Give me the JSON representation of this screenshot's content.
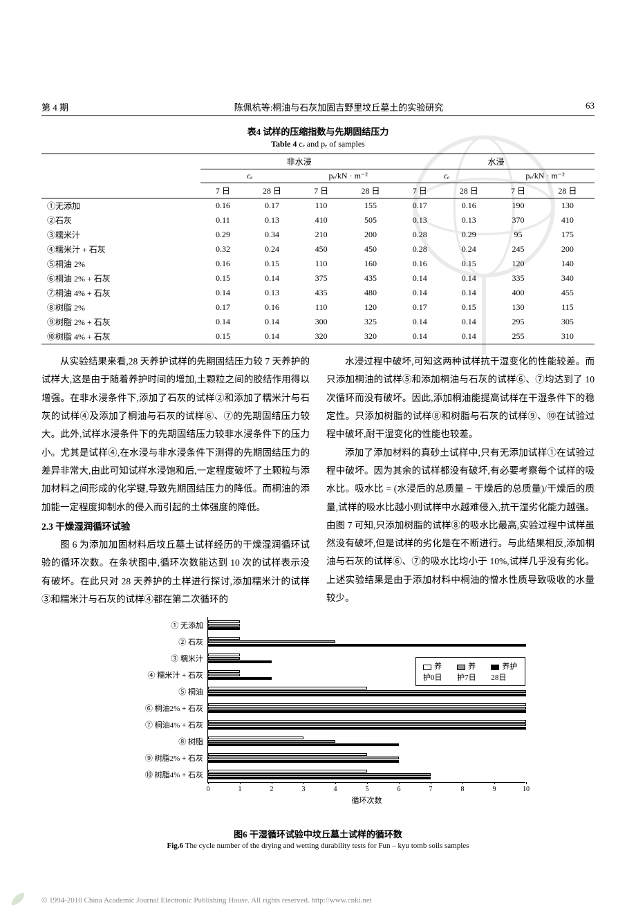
{
  "page": {
    "issue": "第 4 期",
    "running_title": "陈佩杭等:桐油与石灰加固吉野里坟丘墓土的实验研究",
    "page_number": "63"
  },
  "table4": {
    "caption_cn": "表4  试样的压缩指数与先期固结压力",
    "caption_en_prefix": "Table 4",
    "caption_en_body": "cₑ and pₑ of samples",
    "group_labels": {
      "unsat": "非水浸",
      "sat": "水浸"
    },
    "subheads": {
      "cc": "cₑ",
      "pc": "pₑ/kN · m⁻²",
      "d7": "7 日",
      "d28": "28 日"
    },
    "rows": [
      {
        "label": "①无添加",
        "ucc7": "0.16",
        "ucc28": "0.17",
        "upc7": "110",
        "upc28": "155",
        "scc7": "0.17",
        "scc28": "0.16",
        "spc7": "190",
        "spc28": "130"
      },
      {
        "label": "②石灰",
        "ucc7": "0.11",
        "ucc28": "0.13",
        "upc7": "410",
        "upc28": "505",
        "scc7": "0.13",
        "scc28": "0.13",
        "spc7": "370",
        "spc28": "410"
      },
      {
        "label": "③糯米汁",
        "ucc7": "0.29",
        "ucc28": "0.34",
        "upc7": "210",
        "upc28": "200",
        "scc7": "0.28",
        "scc28": "0.29",
        "spc7": "95",
        "spc28": "175"
      },
      {
        "label": "④糯米汁 + 石灰",
        "ucc7": "0.32",
        "ucc28": "0.24",
        "upc7": "450",
        "upc28": "450",
        "scc7": "0.28",
        "scc28": "0.24",
        "spc7": "245",
        "spc28": "200"
      },
      {
        "label": "⑤桐油 2%",
        "ucc7": "0.16",
        "ucc28": "0.15",
        "upc7": "110",
        "upc28": "160",
        "scc7": "0.16",
        "scc28": "0.15",
        "spc7": "120",
        "spc28": "140"
      },
      {
        "label": "⑥桐油 2% + 石灰",
        "ucc7": "0.15",
        "ucc28": "0.14",
        "upc7": "375",
        "upc28": "435",
        "scc7": "0.14",
        "scc28": "0.14",
        "spc7": "335",
        "spc28": "340"
      },
      {
        "label": "⑦桐油 4% + 石灰",
        "ucc7": "0.14",
        "ucc28": "0.13",
        "upc7": "435",
        "upc28": "480",
        "scc7": "0.14",
        "scc28": "0.14",
        "spc7": "400",
        "spc28": "455"
      },
      {
        "label": "⑧树脂 2%",
        "ucc7": "0.17",
        "ucc28": "0.16",
        "upc7": "110",
        "upc28": "120",
        "scc7": "0.17",
        "scc28": "0.15",
        "spc7": "130",
        "spc28": "115"
      },
      {
        "label": "⑨树脂 2% + 石灰",
        "ucc7": "0.14",
        "ucc28": "0.14",
        "upc7": "300",
        "upc28": "325",
        "scc7": "0.14",
        "scc28": "0.14",
        "spc7": "295",
        "spc28": "305"
      },
      {
        "label": "⑩树脂 4% + 石灰",
        "ucc7": "0.15",
        "ucc28": "0.14",
        "upc7": "320",
        "upc28": "320",
        "scc7": "0.14",
        "scc28": "0.14",
        "spc7": "255",
        "spc28": "310"
      }
    ]
  },
  "body": {
    "left": {
      "p1": "从实验结果来看,28 天养护试样的先期固结压力较 7 天养护的试样大,这是由于随着养护时间的增加,土颗粒之间的胶结作用得以增强。在非水浸条件下,添加了石灰的试样②和添加了糯米汁与石灰的试样④及添加了桐油与石灰的试样⑥、⑦的先期固结压力较大。此外,试样水浸条件下的先期固结压力较非水浸条件下的压力小。尤其是试样④,在水浸与非水浸条件下测得的先期固结压力的差异非常大,由此可知试样水浸饱和后,一定程度破坏了土颗粒与添加材料之间形成的化学键,导致先期固结压力的降低。而桐油的添加能一定程度抑制水的侵入而引起的土体强度的降低。",
      "h3": "2.3  干燥湿润循环试验",
      "p2": "图 6 为添加加固材料后坟丘墓土试样经历的干燥湿润循环试验的循环次数。在条状图中,循环次数能达到 10 次的试样表示没有破坏。在此只对 28 天养护的土样进行探讨,添加糯米汁的试样③和糯米汁与石灰的试样④都在第二次循环的"
    },
    "right": {
      "p1": "水浸过程中破坏,可知这两种试样抗干湿变化的性能较差。而只添加桐油的试样⑤和添加桐油与石灰的试样⑥、⑦均达到了 10 次循环而没有破坏。因此,添加桐油能提高试样在干湿条件下的稳定性。只添加树脂的试样⑧和树脂与石灰的试样⑨、⑩在试验过程中破坏,耐干湿变化的性能也较差。",
      "p2": "添加了添加材料的真砂土试样中,只有无添加试样①在试验过程中破坏。因为其余的试样都没有破坏,有必要考察每个试样的吸水比。吸水比 = (水浸后的总质量 − 干燥后的总质量)/干燥后的质量,试样的吸水比越小则试样中水越难侵入,抗干湿劣化能力越强。由图 7 可知,只添加树脂的试样⑧的吸水比最高,实验过程中试样虽然没有破坏,但是试样的劣化是在不断进行。与此结果相反,添加桐油与石灰的试样⑥、⑦的吸水比均小于 10%,试样几乎没有劣化。上述实验结果是由于添加材料中桐油的憎水性质导致吸收的水量较少。"
    }
  },
  "figure6": {
    "type": "horizontal_bar",
    "xlabel": "循环次数",
    "xlim": [
      0,
      10
    ],
    "ticks": [
      0,
      1,
      2,
      3,
      4,
      5,
      6,
      7,
      8,
      9,
      10
    ],
    "legend": {
      "d0": "养护0日",
      "d7": "养护7日",
      "d28": "养护28日"
    },
    "legend_colors": {
      "d0": "#ffffff",
      "d7": "#9a9a9a",
      "d28": "#000000"
    },
    "border_color": "#000000",
    "categories": [
      {
        "label": "① 无添加",
        "d0": 1,
        "d7": 1,
        "d28": 1
      },
      {
        "label": "② 石灰",
        "d0": 1,
        "d7": 4,
        "d28": 10
      },
      {
        "label": "③ 糯米汁",
        "d0": 1,
        "d7": 1,
        "d28": 2
      },
      {
        "label": "④ 糯米汁 + 石灰",
        "d0": 1,
        "d7": 1,
        "d28": 2
      },
      {
        "label": "⑤ 桐油",
        "d0": 5,
        "d7": 10,
        "d28": 10
      },
      {
        "label": "⑥ 桐油2% + 石灰",
        "d0": 10,
        "d7": 10,
        "d28": 10
      },
      {
        "label": "⑦ 桐油4% + 石灰",
        "d0": 10,
        "d7": 10,
        "d28": 10
      },
      {
        "label": "⑧ 树脂",
        "d0": 3,
        "d7": 4,
        "d28": 6
      },
      {
        "label": "⑨ 树脂2% + 石灰",
        "d0": 5,
        "d7": 6,
        "d28": 6
      },
      {
        "label": "⑩ 树脂4% + 石灰",
        "d0": 5,
        "d7": 7,
        "d28": 7
      }
    ],
    "caption_cn": "图6  干湿循环试验中坟丘墓土试样的循环数",
    "caption_en": "Fig.6  The cycle number of the drying and wetting durability tests for Fun – kyu tomb soils samples"
  },
  "footer": {
    "text": "© 1994-2010 China Academic Journal Electronic Publishing House. All rights reserved.   http://www.cnki.net"
  }
}
